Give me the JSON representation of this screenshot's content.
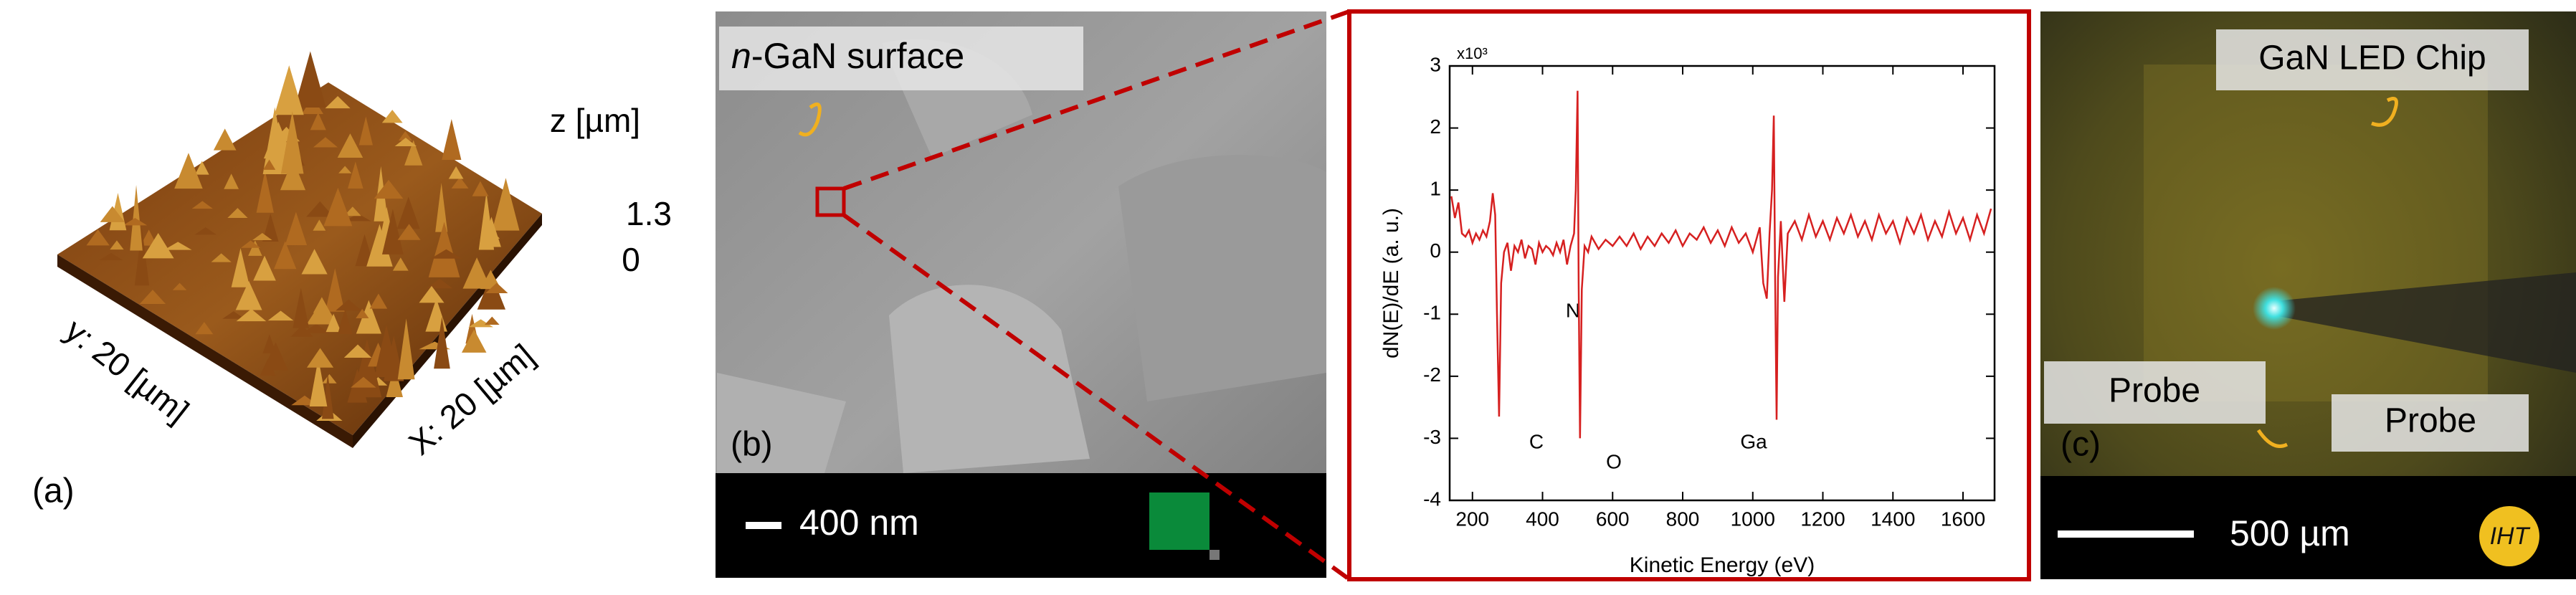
{
  "panel_a": {
    "z_label": "z [µm]",
    "z_max": 1.3,
    "z_min": 0,
    "y_label": "y: 20 [µm]",
    "x_label": "X: 20 [µm]",
    "tag": "(a)"
  },
  "panel_b": {
    "surface_label_italic": "n",
    "surface_label": "-GaN surface",
    "scale_bar": "400 nm",
    "tag": "(b)"
  },
  "chart_data": {
    "type": "line",
    "x_label": "Kinetic Energy (eV)",
    "y_label": "dN(E)/dE (a. u.)",
    "y_scale": "x10³",
    "xlim": [
      135,
      1690
    ],
    "ylim": [
      -4,
      3
    ],
    "xticks": [
      200,
      400,
      600,
      800,
      1000,
      1200,
      1400,
      1600
    ],
    "yticks": [
      -4,
      -3,
      -2,
      -1,
      0,
      1,
      2,
      3
    ],
    "annotations": [
      "C",
      "N",
      "O",
      "Ga"
    ],
    "series": [
      {
        "color": "#d62020",
        "x": [
          140,
          150,
          160,
          170,
          180,
          190,
          200,
          210,
          220,
          230,
          240,
          250,
          258,
          265,
          270,
          276,
          282,
          290,
          300,
          310,
          320,
          330,
          340,
          350,
          360,
          370,
          380,
          390,
          400,
          410,
          420,
          430,
          440,
          450,
          460,
          470,
          480,
          490,
          495,
          500,
          503,
          507,
          512,
          520,
          530,
          540,
          560,
          580,
          600,
          620,
          640,
          660,
          680,
          700,
          720,
          740,
          760,
          780,
          800,
          820,
          840,
          860,
          880,
          900,
          920,
          940,
          960,
          980,
          1000,
          1020,
          1030,
          1040,
          1048,
          1055,
          1060,
          1064,
          1068,
          1072,
          1080,
          1090,
          1100,
          1120,
          1140,
          1160,
          1180,
          1200,
          1220,
          1240,
          1260,
          1280,
          1300,
          1320,
          1340,
          1360,
          1380,
          1400,
          1420,
          1440,
          1460,
          1480,
          1500,
          1520,
          1540,
          1560,
          1580,
          1600,
          1620,
          1640,
          1660,
          1680
        ],
        "values": [
          0.9,
          0.55,
          0.8,
          0.3,
          0.25,
          0.35,
          0.15,
          0.3,
          0.2,
          0.35,
          0.25,
          0.5,
          0.95,
          0.6,
          -1.0,
          -2.65,
          -0.5,
          0.0,
          0.15,
          -0.3,
          0.1,
          0.0,
          0.2,
          -0.1,
          0.1,
          0.05,
          -0.2,
          0.15,
          0.0,
          0.1,
          0.05,
          -0.05,
          0.15,
          0.0,
          0.2,
          -0.2,
          0.1,
          0.3,
          1.0,
          2.6,
          -0.5,
          -3.0,
          -0.6,
          0.1,
          0.0,
          0.25,
          0.05,
          0.2,
          0.1,
          0.25,
          0.1,
          0.3,
          0.05,
          0.25,
          0.1,
          0.3,
          0.15,
          0.35,
          0.1,
          0.3,
          0.2,
          0.4,
          0.15,
          0.35,
          0.1,
          0.4,
          0.15,
          0.3,
          0.0,
          0.4,
          -0.5,
          -0.75,
          0.3,
          1.0,
          2.2,
          -0.5,
          -2.7,
          -0.4,
          0.5,
          -0.8,
          0.3,
          0.5,
          0.2,
          0.6,
          0.25,
          0.5,
          0.2,
          0.55,
          0.3,
          0.6,
          0.25,
          0.5,
          0.2,
          0.6,
          0.3,
          0.5,
          0.15,
          0.55,
          0.3,
          0.6,
          0.2,
          0.5,
          0.25,
          0.65,
          0.3,
          0.55,
          0.2,
          0.6,
          0.3,
          0.7
        ]
      }
    ]
  },
  "panel_c": {
    "title": "GaN LED Chip",
    "probe_left": "Probe",
    "probe_right": "Probe",
    "tag": "(c)",
    "scale_bar": "500 µm",
    "logo": "IHT"
  }
}
